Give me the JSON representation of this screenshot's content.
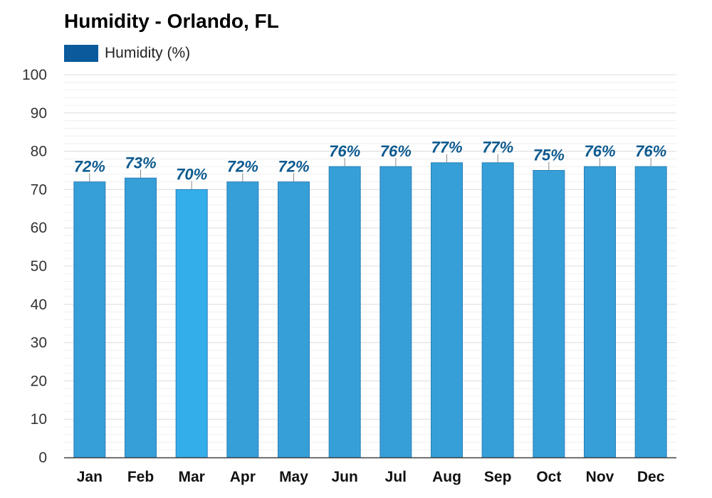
{
  "chart_data": {
    "type": "bar",
    "title": "Humidity - Orlando, FL",
    "categories": [
      "Jan",
      "Feb",
      "Mar",
      "Apr",
      "May",
      "Jun",
      "Jul",
      "Aug",
      "Sep",
      "Oct",
      "Nov",
      "Dec"
    ],
    "series": [
      {
        "name": "Humidity (%)",
        "values": [
          72,
          73,
          70,
          72,
          72,
          76,
          76,
          77,
          77,
          75,
          76,
          76
        ],
        "data_labels": [
          "72%",
          "73%",
          "70%",
          "72%",
          "72%",
          "76%",
          "76%",
          "77%",
          "77%",
          "75%",
          "76%",
          "76%"
        ]
      }
    ],
    "highlight_category": "Mar",
    "xlabel": "",
    "ylabel": "",
    "ylim": [
      0,
      100
    ],
    "y_ticks": [
      0,
      10,
      20,
      30,
      40,
      50,
      60,
      70,
      80,
      90,
      100
    ],
    "grid": true,
    "legend_position": "top-left",
    "colors": {
      "bar": "#369fd8",
      "bar_highlight": "#33aeeb",
      "bar_border": "#2a7fb8",
      "legend_swatch": "#0a5a9c",
      "data_label": "#0d5a8f",
      "grid": "#e6e6e6"
    }
  }
}
